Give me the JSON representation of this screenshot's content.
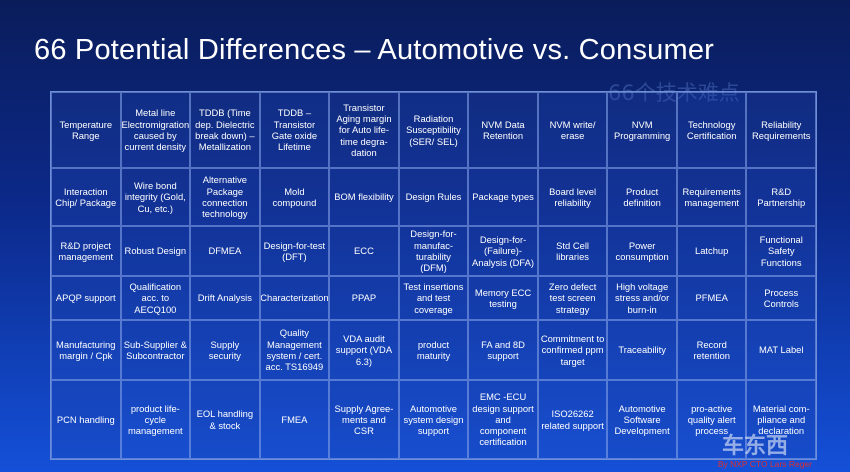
{
  "slide": {
    "title": "66 Potential Differences – Automotive vs. Consumer",
    "subtitle_cn": "66个技术难点",
    "credit": "By NXP CTO Lars Reger",
    "watermark": "车东西"
  },
  "table": {
    "rows": [
      [
        "Temperature Range",
        "Metal line Electromigration caused by current density",
        "TDDB (Time dep. Dielectric break down) – Metallization",
        "TDDB – Transistor Gate oxide Lifetime",
        "Transistor Aging margin for Auto life-time degra-dation",
        "Radiation Susceptibility (SER/ SEL)",
        "NVM Data Retention",
        "NVM write/ erase",
        "NVM Programming",
        "Technology Certification",
        "Reliability Requirements"
      ],
      [
        "Interaction Chip/ Package",
        "Wire bond integrity (Gold, Cu, etc.)",
        "Alternative Package connection technology",
        "Mold compound",
        "BOM flexibility",
        "Design Rules",
        "Package types",
        "Board level reliability",
        "Product definition",
        "Requirements management",
        "R&D Partnership"
      ],
      [
        "R&D project management",
        "Robust Design",
        "DFMEA",
        "Design-for-test (DFT)",
        "ECC",
        "Design-for-manufac-turability (DFM)",
        "Design-for-(Failure)-Analysis (DFA)",
        "Std Cell libraries",
        "Power consumption",
        "Latchup",
        "Functional Safety Functions"
      ],
      [
        "APQP support",
        "Qualification acc. to AECQ100",
        "Drift Analysis",
        "Characterization",
        "PPAP",
        "Test insertions and test coverage",
        "Memory ECC testing",
        "Zero defect test screen strategy",
        "High voltage stress and/or burn-in",
        "PFMEA",
        "Process Controls"
      ],
      [
        "Manufacturing margin / Cpk",
        "Sub-Supplier & Subcontractor",
        "Supply security",
        "Quality Management system / cert. acc. TS16949",
        "VDA audit support (VDA 6.3)",
        "product maturity",
        "FA and 8D support",
        "Commitment to confirmed ppm target",
        "Traceability",
        "Record retention",
        "MAT Label"
      ],
      [
        "PCN handling",
        "product life-cycle management",
        "EOL handling & stock",
        "FMEA",
        "Supply Agree-ments and CSR",
        "Automotive system design support",
        "EMC -ECU design support and component certification",
        "ISO26262 related support",
        "Automotive Software Development",
        "pro-active quality alert process",
        "Material com-pliance and declaration"
      ]
    ]
  }
}
